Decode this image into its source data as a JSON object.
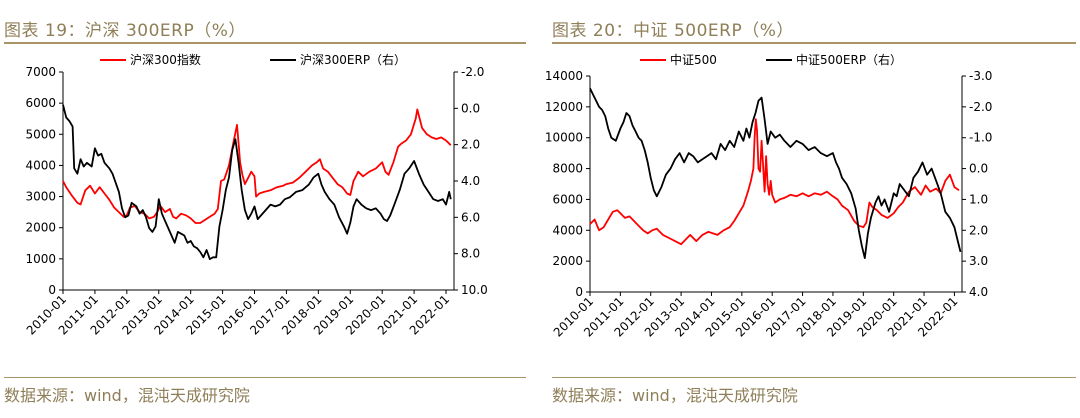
{
  "colors": {
    "red": "#ff0000",
    "black": "#000000",
    "accent": "#a99467",
    "title_text": "#8f7f58"
  },
  "left": {
    "title": "图表 19：沪深 300ERP（%）",
    "source": "数据来源：wind，混沌天成研究院",
    "chart_data": {
      "type": "line",
      "x_ticks": [
        "2010-01",
        "2011-01",
        "2012-01",
        "2013-01",
        "2014-01",
        "2015-01",
        "2016-01",
        "2017-01",
        "2018-01",
        "2019-01",
        "2020-01",
        "2021-01",
        "2022-01"
      ],
      "x_range": [
        2010.0,
        2022.25
      ],
      "y_left": {
        "range": [
          0,
          7000
        ],
        "ticks": [
          0,
          1000,
          2000,
          3000,
          4000,
          5000,
          6000,
          7000
        ],
        "tick_labels": [
          "0",
          "1000",
          "2000",
          "3000",
          "4000",
          "5000",
          "6000",
          "7000"
        ]
      },
      "y_right": {
        "range": [
          -2,
          10
        ],
        "inverted": true,
        "ticks": [
          -2,
          0,
          2,
          4,
          6,
          8,
          10
        ],
        "tick_labels": [
          "-2.0",
          "0.0",
          "2.0",
          "4.0",
          "6.0",
          "8.0",
          "10.0"
        ]
      },
      "legend_position": "top",
      "series": [
        {
          "name": "沪深300指数",
          "axis": "left",
          "color": "red",
          "x": [
            2010.0,
            2010.1,
            2010.3,
            2010.45,
            2010.55,
            2010.7,
            2010.85,
            2011.0,
            2011.15,
            2011.3,
            2011.45,
            2011.6,
            2011.75,
            2011.9,
            2012.0,
            2012.1,
            2012.25,
            2012.4,
            2012.55,
            2012.7,
            2012.85,
            2012.95,
            2013.05,
            2013.2,
            2013.35,
            2013.45,
            2013.55,
            2013.7,
            2013.85,
            2014.0,
            2014.15,
            2014.3,
            2014.45,
            2014.6,
            2014.75,
            2014.85,
            2014.95,
            2015.05,
            2015.2,
            2015.35,
            2015.45,
            2015.5,
            2015.55,
            2015.62,
            2015.7,
            2015.8,
            2015.9,
            2016.0,
            2016.05,
            2016.15,
            2016.3,
            2016.5,
            2016.7,
            2016.9,
            2017.0,
            2017.2,
            2017.4,
            2017.6,
            2017.8,
            2017.95,
            2018.05,
            2018.15,
            2018.3,
            2018.45,
            2018.6,
            2018.75,
            2018.9,
            2019.0,
            2019.1,
            2019.25,
            2019.4,
            2019.6,
            2019.8,
            2020.0,
            2020.1,
            2020.2,
            2020.35,
            2020.5,
            2020.6,
            2020.75,
            2020.9,
            2021.05,
            2021.1,
            2021.25,
            2021.4,
            2021.55,
            2021.7,
            2021.85,
            2022.0,
            2022.15
          ],
          "values": [
            3500,
            3300,
            3000,
            2800,
            2750,
            3200,
            3350,
            3100,
            3300,
            3100,
            2900,
            2650,
            2500,
            2350,
            2400,
            2650,
            2700,
            2500,
            2450,
            2300,
            2350,
            2500,
            2700,
            2500,
            2600,
            2350,
            2300,
            2450,
            2400,
            2300,
            2150,
            2150,
            2250,
            2350,
            2450,
            2600,
            3500,
            3550,
            4000,
            4800,
            5300,
            4700,
            4100,
            3700,
            3400,
            3600,
            3800,
            3650,
            3000,
            3100,
            3150,
            3200,
            3300,
            3350,
            3400,
            3450,
            3600,
            3800,
            4000,
            4100,
            4200,
            3900,
            3800,
            3600,
            3400,
            3300,
            3100,
            3050,
            3500,
            3800,
            3650,
            3800,
            3900,
            4100,
            3800,
            3700,
            4100,
            4600,
            4700,
            4800,
            5000,
            5500,
            5800,
            5200,
            5000,
            4900,
            4850,
            4900,
            4800,
            4650
          ]
        },
        {
          "name": "沪深300ERP（右）",
          "axis": "right",
          "color": "black",
          "x": [
            2010.0,
            2010.1,
            2010.2,
            2010.3,
            2010.35,
            2010.45,
            2010.55,
            2010.65,
            2010.75,
            2010.9,
            2011.0,
            2011.1,
            2011.2,
            2011.3,
            2011.45,
            2011.55,
            2011.65,
            2011.75,
            2011.85,
            2011.95,
            2012.05,
            2012.15,
            2012.3,
            2012.4,
            2012.5,
            2012.6,
            2012.7,
            2012.8,
            2012.9,
            2013.0,
            2013.1,
            2013.2,
            2013.3,
            2013.4,
            2013.5,
            2013.6,
            2013.7,
            2013.8,
            2013.9,
            2014.0,
            2014.1,
            2014.2,
            2014.3,
            2014.4,
            2014.5,
            2014.6,
            2014.7,
            2014.8,
            2014.9,
            2015.0,
            2015.1,
            2015.2,
            2015.3,
            2015.4,
            2015.5,
            2015.6,
            2015.7,
            2015.8,
            2015.9,
            2016.0,
            2016.1,
            2016.2,
            2016.35,
            2016.5,
            2016.65,
            2016.8,
            2016.95,
            2017.1,
            2017.3,
            2017.5,
            2017.7,
            2017.85,
            2018.0,
            2018.1,
            2018.2,
            2018.35,
            2018.5,
            2018.65,
            2018.8,
            2018.9,
            2019.0,
            2019.1,
            2019.2,
            2019.35,
            2019.5,
            2019.65,
            2019.8,
            2019.95,
            2020.05,
            2020.15,
            2020.25,
            2020.4,
            2020.55,
            2020.7,
            2020.85,
            2021.0,
            2021.15,
            2021.3,
            2021.45,
            2021.6,
            2021.75,
            2021.9,
            2022.0,
            2022.1,
            2022.15
          ],
          "values": [
            -0.2,
            0.5,
            0.7,
            1.0,
            3.3,
            3.6,
            2.8,
            3.2,
            3.0,
            3.2,
            2.2,
            2.6,
            2.5,
            3.0,
            3.3,
            3.6,
            4.1,
            4.6,
            5.5,
            6.0,
            5.9,
            5.2,
            5.4,
            5.8,
            5.6,
            6.0,
            6.6,
            6.8,
            6.5,
            5.0,
            5.8,
            6.2,
            6.6,
            7.0,
            7.4,
            6.8,
            6.9,
            7.0,
            7.4,
            7.3,
            7.6,
            7.7,
            7.9,
            8.2,
            7.8,
            8.3,
            8.2,
            8.2,
            6.5,
            5.6,
            4.5,
            3.8,
            2.3,
            1.7,
            3.0,
            4.5,
            5.6,
            6.1,
            5.8,
            5.4,
            6.1,
            5.9,
            5.6,
            5.3,
            5.4,
            5.3,
            5.0,
            4.9,
            4.6,
            4.5,
            4.2,
            3.8,
            3.6,
            4.2,
            4.6,
            5.0,
            5.3,
            6.0,
            6.5,
            6.9,
            6.3,
            5.4,
            5.0,
            5.3,
            5.5,
            5.6,
            5.5,
            5.8,
            6.1,
            6.2,
            5.9,
            5.2,
            4.5,
            3.6,
            3.3,
            2.9,
            3.6,
            4.2,
            4.6,
            5.0,
            5.1,
            5.0,
            5.3,
            4.6,
            5.0
          ]
        }
      ]
    }
  },
  "right": {
    "title": "图表 20：中证 500ERP（%）",
    "source": "数据来源：wind，混沌天成研究院",
    "chart_data": {
      "type": "line",
      "x_ticks": [
        "2010-01",
        "2011-01",
        "2012-01",
        "2013-01",
        "2014-01",
        "2015-01",
        "2016-01",
        "2017-01",
        "2018-01",
        "2019-01",
        "2020-01",
        "2021-01",
        "2022-01"
      ],
      "x_range": [
        2010.0,
        2022.25
      ],
      "y_left": {
        "range": [
          0,
          14000
        ],
        "ticks": [
          0,
          2000,
          4000,
          6000,
          8000,
          10000,
          12000,
          14000
        ],
        "tick_labels": [
          "0",
          "2000",
          "4000",
          "6000",
          "8000",
          "10000",
          "12000",
          "14000"
        ]
      },
      "y_right": {
        "range": [
          -3,
          4
        ],
        "inverted": true,
        "ticks": [
          -3,
          -2,
          -1,
          0,
          1,
          2,
          3,
          4
        ],
        "tick_labels": [
          "-3.0",
          "-2.0",
          "-1.0",
          "0.0",
          "1.0",
          "2.0",
          "3.0",
          "4.0"
        ]
      },
      "legend_position": "top",
      "series": [
        {
          "name": "中证500",
          "axis": "left",
          "color": "red",
          "x": [
            2010.0,
            2010.15,
            2010.3,
            2010.45,
            2010.6,
            2010.75,
            2010.9,
            2011.0,
            2011.15,
            2011.3,
            2011.45,
            2011.6,
            2011.75,
            2011.9,
            2012.05,
            2012.2,
            2012.4,
            2012.6,
            2012.8,
            2013.0,
            2013.15,
            2013.3,
            2013.5,
            2013.7,
            2013.9,
            2014.05,
            2014.2,
            2014.4,
            2014.6,
            2014.75,
            2014.9,
            2015.05,
            2015.2,
            2015.3,
            2015.38,
            2015.42,
            2015.46,
            2015.5,
            2015.55,
            2015.6,
            2015.65,
            2015.7,
            2015.75,
            2015.8,
            2015.85,
            2015.9,
            2015.95,
            2016.0,
            2016.1,
            2016.25,
            2016.4,
            2016.6,
            2016.8,
            2017.0,
            2017.2,
            2017.4,
            2017.6,
            2017.8,
            2018.0,
            2018.15,
            2018.3,
            2018.5,
            2018.7,
            2018.85,
            2019.0,
            2019.1,
            2019.2,
            2019.3,
            2019.45,
            2019.6,
            2019.8,
            2020.0,
            2020.15,
            2020.3,
            2020.5,
            2020.7,
            2020.9,
            2021.05,
            2021.2,
            2021.4,
            2021.55,
            2021.7,
            2021.85,
            2022.0,
            2022.15
          ],
          "values": [
            4400,
            4700,
            4000,
            4200,
            4700,
            5200,
            5300,
            5100,
            4800,
            4900,
            4600,
            4300,
            4000,
            3800,
            4000,
            4100,
            3700,
            3500,
            3300,
            3100,
            3400,
            3700,
            3300,
            3700,
            3900,
            3800,
            3700,
            4000,
            4200,
            4600,
            5100,
            5600,
            6500,
            7200,
            8000,
            10000,
            11200,
            10500,
            8000,
            7800,
            9800,
            8200,
            6500,
            8800,
            7000,
            6300,
            7200,
            6300,
            5800,
            6000,
            6100,
            6300,
            6200,
            6400,
            6200,
            6400,
            6300,
            6500,
            6200,
            6000,
            5600,
            5300,
            4600,
            4300,
            4200,
            4500,
            5800,
            5500,
            5300,
            5000,
            4800,
            5100,
            5500,
            5800,
            6500,
            6800,
            6300,
            6900,
            6500,
            6700,
            6400,
            7200,
            7600,
            6800,
            6600
          ]
        },
        {
          "name": "中证500ERP（右）",
          "axis": "right",
          "color": "black",
          "x": [
            2010.0,
            2010.1,
            2010.2,
            2010.3,
            2010.4,
            2010.5,
            2010.6,
            2010.7,
            2010.85,
            2011.0,
            2011.1,
            2011.2,
            2011.3,
            2011.4,
            2011.5,
            2011.6,
            2011.7,
            2011.8,
            2011.9,
            2012.0,
            2012.1,
            2012.2,
            2012.35,
            2012.5,
            2012.65,
            2012.8,
            2012.95,
            2013.1,
            2013.25,
            2013.4,
            2013.55,
            2013.7,
            2013.85,
            2014.0,
            2014.15,
            2014.3,
            2014.45,
            2014.6,
            2014.75,
            2014.9,
            2015.05,
            2015.15,
            2015.25,
            2015.35,
            2015.45,
            2015.55,
            2015.65,
            2015.75,
            2015.85,
            2015.95,
            2016.1,
            2016.25,
            2016.4,
            2016.6,
            2016.8,
            2017.0,
            2017.2,
            2017.4,
            2017.6,
            2017.8,
            2018.0,
            2018.1,
            2018.2,
            2018.3,
            2018.45,
            2018.6,
            2018.75,
            2018.85,
            2018.95,
            2019.0,
            2019.05,
            2019.15,
            2019.25,
            2019.4,
            2019.5,
            2019.6,
            2019.7,
            2019.85,
            2020.0,
            2020.1,
            2020.2,
            2020.35,
            2020.5,
            2020.65,
            2020.8,
            2020.95,
            2021.1,
            2021.25,
            2021.4,
            2021.55,
            2021.7,
            2021.85,
            2022.0,
            2022.1,
            2022.2
          ],
          "values": [
            -2.6,
            -2.4,
            -2.2,
            -2.0,
            -1.9,
            -1.7,
            -1.3,
            -1.0,
            -0.9,
            -1.3,
            -1.5,
            -1.8,
            -1.7,
            -1.4,
            -1.2,
            -1.0,
            -0.9,
            -0.6,
            -0.2,
            0.3,
            0.7,
            0.9,
            0.6,
            0.2,
            0.0,
            -0.3,
            -0.5,
            -0.2,
            -0.5,
            -0.4,
            -0.2,
            -0.3,
            -0.4,
            -0.5,
            -0.3,
            -0.8,
            -0.6,
            -0.9,
            -0.7,
            -1.2,
            -0.9,
            -1.3,
            -1.0,
            -1.5,
            -1.8,
            -2.2,
            -2.3,
            -1.6,
            -0.8,
            -1.2,
            -1.0,
            -1.1,
            -0.9,
            -0.7,
            -0.9,
            -0.8,
            -0.6,
            -0.7,
            -0.5,
            -0.4,
            -0.5,
            -0.2,
            0.0,
            0.3,
            0.5,
            0.8,
            1.3,
            2.0,
            2.5,
            2.7,
            2.9,
            2.1,
            1.6,
            1.1,
            0.9,
            1.2,
            1.0,
            1.4,
            0.8,
            0.9,
            0.5,
            0.7,
            0.9,
            0.3,
            0.1,
            -0.2,
            0.2,
            0.0,
            0.4,
            0.8,
            1.4,
            1.6,
            1.9,
            2.3,
            2.7
          ]
        }
      ]
    }
  }
}
